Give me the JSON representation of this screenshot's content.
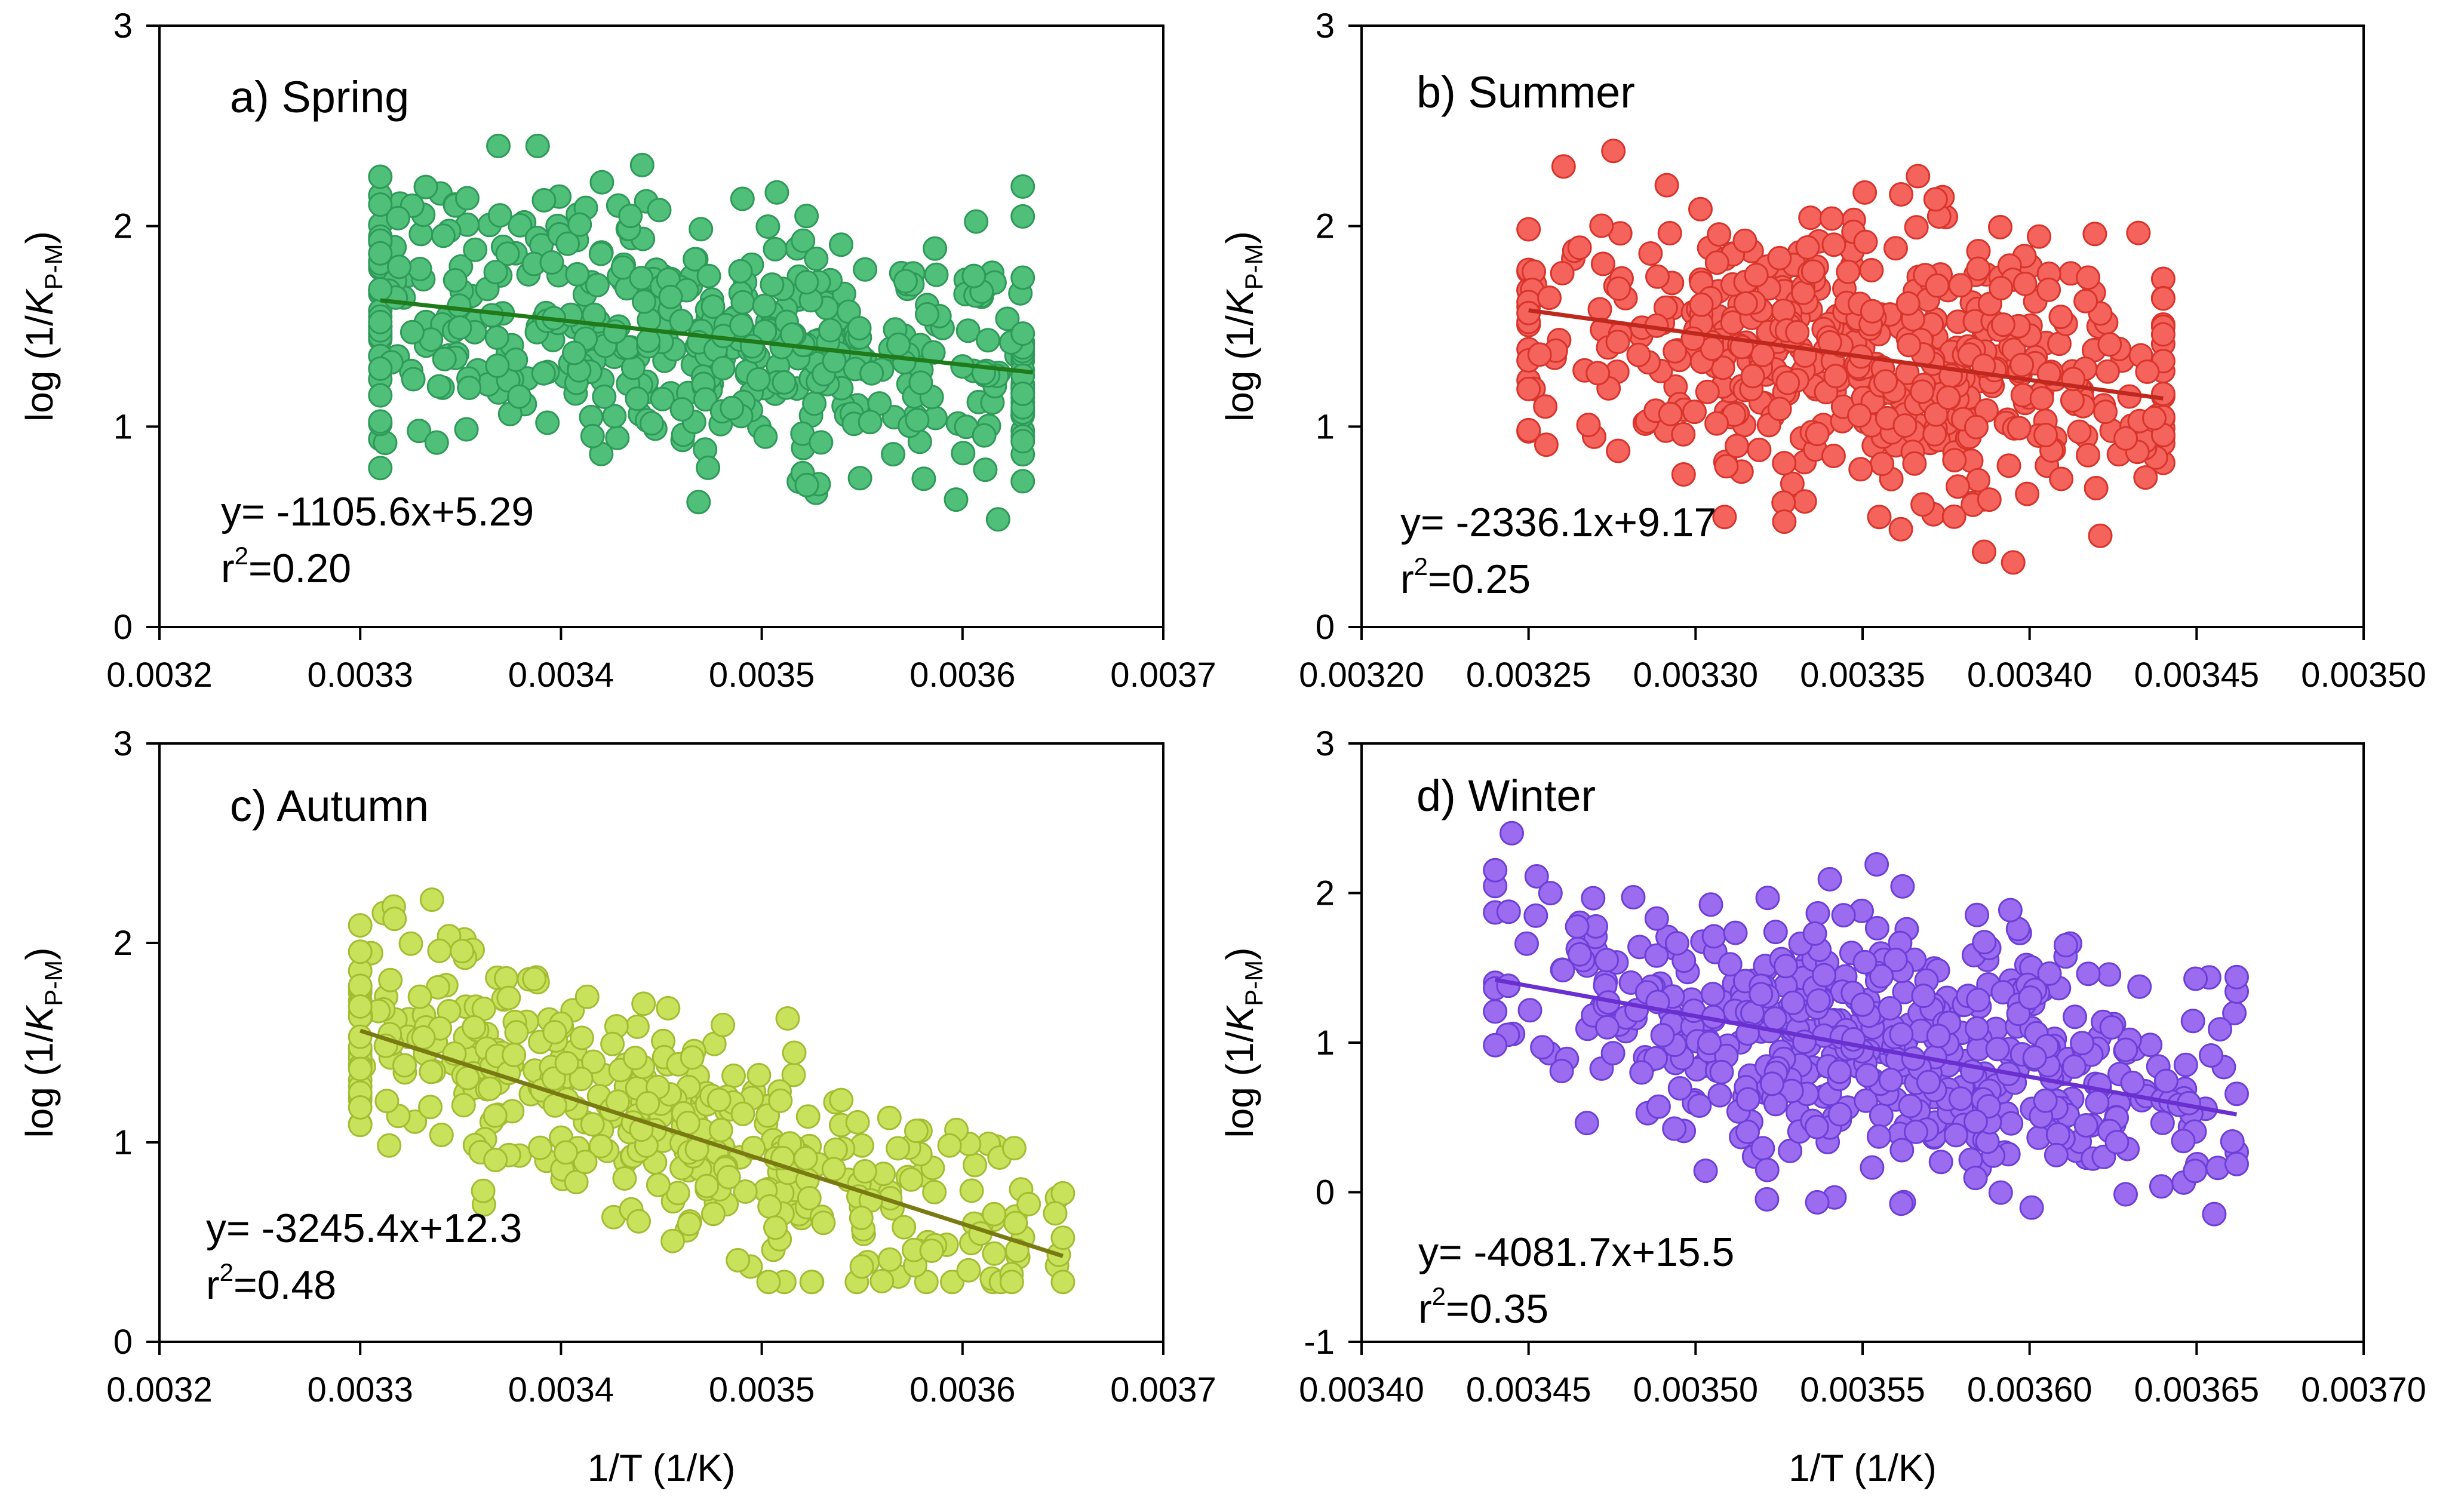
{
  "chart_data": [
    {
      "type": "scatter",
      "panel_label": "a) Spring",
      "xlabel": "",
      "ylabel": {
        "prefix": "log (1/",
        "italic": "K",
        "sub": "P-M",
        "suffix": ")"
      },
      "xlim": [
        0.0032,
        0.0037
      ],
      "ylim": [
        0,
        3
      ],
      "xticks": [
        "0.0032",
        "0.0033",
        "0.0034",
        "0.0035",
        "0.0036",
        "0.0037"
      ],
      "yticks": [
        "0",
        "1",
        "2",
        "3"
      ],
      "colors": {
        "point_fill": "#4fbf7a",
        "point_stroke": "#2e9a58",
        "line": "#1f7a1a"
      },
      "series": [
        {
          "name": "Spring",
          "slope": -1105.6,
          "intercept": 5.29
        }
      ],
      "fit_line": {
        "x": [
          0.00331,
          0.003635
        ],
        "y": [
          1.63,
          1.27
        ]
      },
      "equation": {
        "eq": "y= -1105.6x+5.29",
        "r2_prefix": "r",
        "r2_sup": "2",
        "r2_suffix": "=0.20"
      },
      "sample": {
        "n": 520,
        "x_range": [
          0.00331,
          0.00363
        ],
        "x_center": 0.00346,
        "x_spread": 9e-05,
        "y_sd": 0.33,
        "seed": 11
      }
    },
    {
      "type": "scatter",
      "panel_label": "b) Summer",
      "xlabel": "",
      "ylabel": {
        "prefix": "log (1/",
        "italic": "K",
        "sub": "P-M",
        "suffix": ")"
      },
      "xlim": [
        0.0032,
        0.0035
      ],
      "ylim": [
        0,
        3
      ],
      "xticks": [
        "0.00320",
        "0.00325",
        "0.00330",
        "0.00335",
        "0.00340",
        "0.00345",
        "0.00350"
      ],
      "yticks": [
        "0",
        "1",
        "2",
        "3"
      ],
      "colors": {
        "point_fill": "#f4645c",
        "point_stroke": "#d9342b",
        "line": "#c0281e"
      },
      "series": [
        {
          "name": "Summer",
          "slope": -2336.1,
          "intercept": 9.17
        }
      ],
      "fit_line": {
        "x": [
          0.00325,
          0.00344
        ],
        "y": [
          1.58,
          1.14
        ]
      },
      "equation": {
        "eq": "y= -2336.1x+9.17",
        "r2_prefix": "r",
        "r2_sup": "2",
        "r2_suffix": "=0.25"
      },
      "sample": {
        "n": 560,
        "x_range": [
          0.00325,
          0.00344
        ],
        "x_center": 0.00335,
        "x_spread": 4e-05,
        "y_sd": 0.33,
        "seed": 23
      }
    },
    {
      "type": "scatter",
      "panel_label": "c) Autumn",
      "xlabel": "1/T (1/K)",
      "ylabel": {
        "prefix": "log (1/",
        "italic": "K",
        "sub": "P-M",
        "suffix": ")"
      },
      "xlim": [
        0.0032,
        0.0037
      ],
      "ylim": [
        0,
        3
      ],
      "xticks": [
        "0.0032",
        "0.0033",
        "0.0034",
        "0.0035",
        "0.0036",
        "0.0037"
      ],
      "yticks": [
        "0",
        "1",
        "2",
        "3"
      ],
      "colors": {
        "point_fill": "#c9e25b",
        "point_stroke": "#a3bd32",
        "line": "#7a7a12"
      },
      "series": [
        {
          "name": "Autumn",
          "slope": -3245.4,
          "intercept": 12.3
        }
      ],
      "fit_line": {
        "x": [
          0.0033,
          0.00365
        ],
        "y": [
          1.56,
          0.43
        ]
      },
      "equation": {
        "eq": "y= -3245.4x+12.3",
        "r2_prefix": "r",
        "r2_sup": "2",
        "r2_suffix": "=0.48"
      },
      "sample": {
        "n": 430,
        "x_range": [
          0.0033,
          0.00365
        ],
        "x_center": 0.00343,
        "x_spread": 8e-05,
        "y_sd": 0.28,
        "seed": 37
      }
    },
    {
      "type": "scatter",
      "panel_label": "d) Winter",
      "xlabel": "1/T (1/K)",
      "ylabel": {
        "prefix": "log (1/",
        "italic": "K",
        "sub": "P-M",
        "suffix": ")"
      },
      "xlim": [
        0.0034,
        0.0037
      ],
      "ylim": [
        -1,
        3
      ],
      "xticks": [
        "0.00340",
        "0.00345",
        "0.00350",
        "0.00355",
        "0.00360",
        "0.00365",
        "0.00370"
      ],
      "yticks": [
        "-1",
        "0",
        "1",
        "2",
        "3"
      ],
      "colors": {
        "point_fill": "#9b6cf0",
        "point_stroke": "#6d3fd8",
        "line": "#6a2fd0"
      },
      "series": [
        {
          "name": "Winter",
          "slope": -4081.7,
          "intercept": 15.5
        }
      ],
      "fit_line": {
        "x": [
          0.00344,
          0.003662
        ],
        "y": [
          1.42,
          0.52
        ]
      },
      "equation": {
        "eq": "y= -4081.7x+15.5",
        "r2_prefix": "r",
        "r2_sup": "2",
        "r2_suffix": "=0.35"
      },
      "sample": {
        "n": 560,
        "x_range": [
          0.00344,
          0.003662
        ],
        "x_center": 0.00356,
        "x_spread": 4e-05,
        "y_sd": 0.43,
        "seed": 53
      }
    }
  ]
}
